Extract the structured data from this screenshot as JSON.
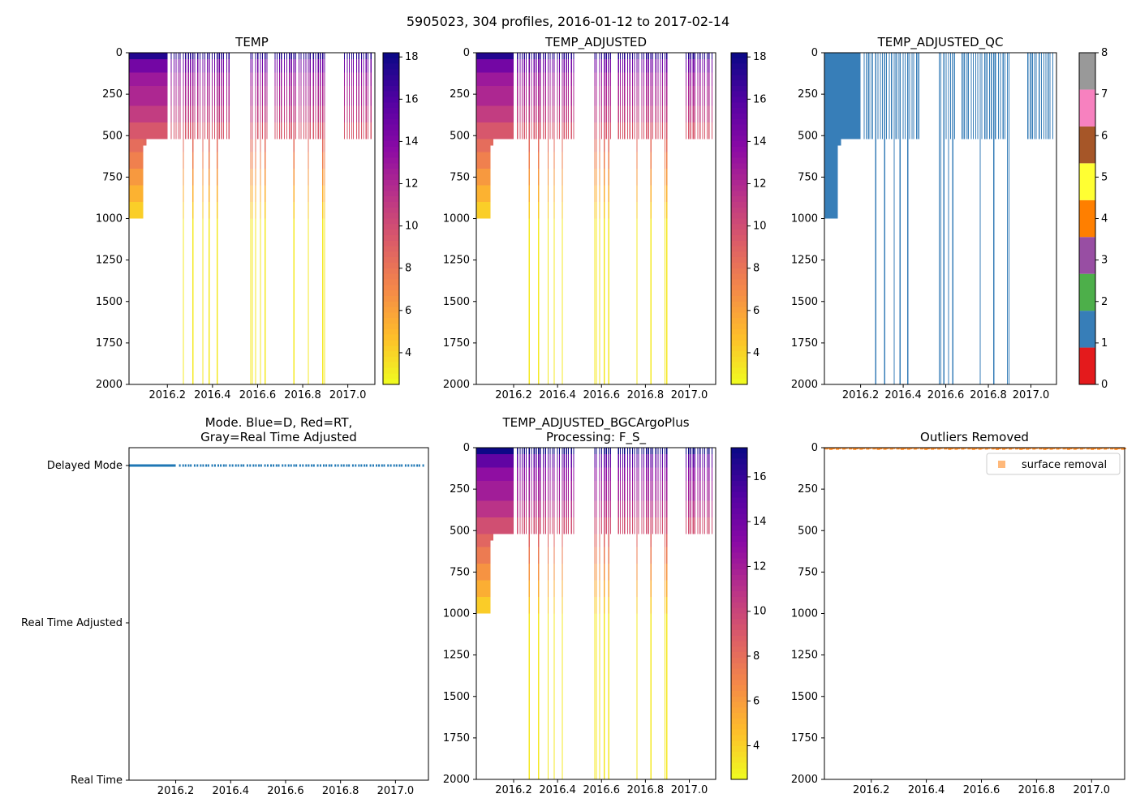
{
  "figure": {
    "title": "5905023, 304 profiles, 2016-01-12 to 2017-02-14"
  },
  "chart_data": [
    {
      "id": "temp",
      "type": "heatmap",
      "title": "TEMP",
      "xlim": [
        2016.03,
        2017.12
      ],
      "xticks": [
        "2016.2",
        "2016.4",
        "2016.6",
        "2016.8",
        "2017.0"
      ],
      "ylim": [
        2000,
        0
      ],
      "yticks": [
        "0",
        "250",
        "500",
        "750",
        "1000",
        "1250",
        "1500",
        "1750",
        "2000"
      ],
      "colorbar": {
        "min": 2.5,
        "max": 18.2,
        "ticks": [
          "4",
          "6",
          "8",
          "10",
          "12",
          "14",
          "16",
          "18"
        ],
        "colormap": "plasma_r"
      },
      "profile_depth_max_dbar": {
        "dense_early_period": 1000,
        "typical": 520,
        "occasional_deep": 2000
      }
    },
    {
      "id": "temp_adjusted",
      "type": "heatmap",
      "title": "TEMP_ADJUSTED",
      "xlim": [
        2016.03,
        2017.12
      ],
      "xticks": [
        "2016.2",
        "2016.4",
        "2016.6",
        "2016.8",
        "2017.0"
      ],
      "ylim": [
        2000,
        0
      ],
      "yticks": [
        "0",
        "250",
        "500",
        "750",
        "1000",
        "1250",
        "1500",
        "1750",
        "2000"
      ],
      "colorbar": {
        "min": 2.5,
        "max": 18.2,
        "ticks": [
          "4",
          "6",
          "8",
          "10",
          "12",
          "14",
          "16",
          "18"
        ],
        "colormap": "plasma_r"
      }
    },
    {
      "id": "temp_adjusted_qc",
      "type": "heatmap",
      "title": "TEMP_ADJUSTED_QC",
      "xlim": [
        2016.03,
        2017.12
      ],
      "xticks": [
        "2016.2",
        "2016.4",
        "2016.6",
        "2016.8",
        "2017.0"
      ],
      "ylim": [
        2000,
        0
      ],
      "yticks": [
        "0",
        "250",
        "500",
        "750",
        "1000",
        "1250",
        "1500",
        "1750",
        "2000"
      ],
      "colorbar": {
        "type": "categorical",
        "ticks": [
          "0",
          "1",
          "2",
          "3",
          "4",
          "5",
          "6",
          "7",
          "8"
        ],
        "colors": [
          "#e41a1c",
          "#377eb8",
          "#4daf4a",
          "#984ea3",
          "#ff7f00",
          "#ffff33",
          "#a65628",
          "#f781bf",
          "#999999"
        ]
      },
      "dominant_flag": 1
    },
    {
      "id": "mode",
      "type": "scatter",
      "title_lines": [
        "Mode. Blue=D, Red=RT,",
        "Gray=Real Time Adjusted"
      ],
      "xlim": [
        2016.03,
        2017.12
      ],
      "xticks": [
        "2016.2",
        "2016.4",
        "2016.6",
        "2016.8",
        "2017.0"
      ],
      "ycategories": [
        "Delayed Mode",
        "Real Time Adjusted",
        "Real Time"
      ],
      "series": [
        {
          "name": "Delayed Mode",
          "color": "#1f77b4",
          "y": "Delayed Mode"
        }
      ]
    },
    {
      "id": "temp_adjusted_bgc",
      "type": "heatmap",
      "title_lines": [
        "TEMP_ADJUSTED_BGCArgoPlus",
        "Processing: F_S_"
      ],
      "xlim": [
        2016.03,
        2017.12
      ],
      "xticks": [
        "2016.2",
        "2016.4",
        "2016.6",
        "2016.8",
        "2017.0"
      ],
      "ylim": [
        2000,
        0
      ],
      "yticks": [
        "0",
        "250",
        "500",
        "750",
        "1000",
        "1250",
        "1500",
        "1750",
        "2000"
      ],
      "colorbar": {
        "min": 2.5,
        "max": 17.3,
        "ticks": [
          "4",
          "6",
          "8",
          "10",
          "12",
          "14",
          "16"
        ],
        "colormap": "plasma_r"
      }
    },
    {
      "id": "outliers",
      "type": "scatter",
      "title": "Outliers Removed",
      "xlim": [
        2016.03,
        2017.12
      ],
      "xticks": [
        "2016.2",
        "2016.4",
        "2016.6",
        "2016.8",
        "2017.0"
      ],
      "ylim": [
        2000,
        0
      ],
      "yticks": [
        "0",
        "250",
        "500",
        "750",
        "1000",
        "1250",
        "1500",
        "1750",
        "2000"
      ],
      "legend": {
        "location": "upper-right",
        "entries": [
          "surface removal"
        ]
      },
      "series": [
        {
          "name": "surface removal",
          "color": "#ff7f0e",
          "depth_range_dbar": [
            0,
            20
          ]
        }
      ]
    }
  ]
}
